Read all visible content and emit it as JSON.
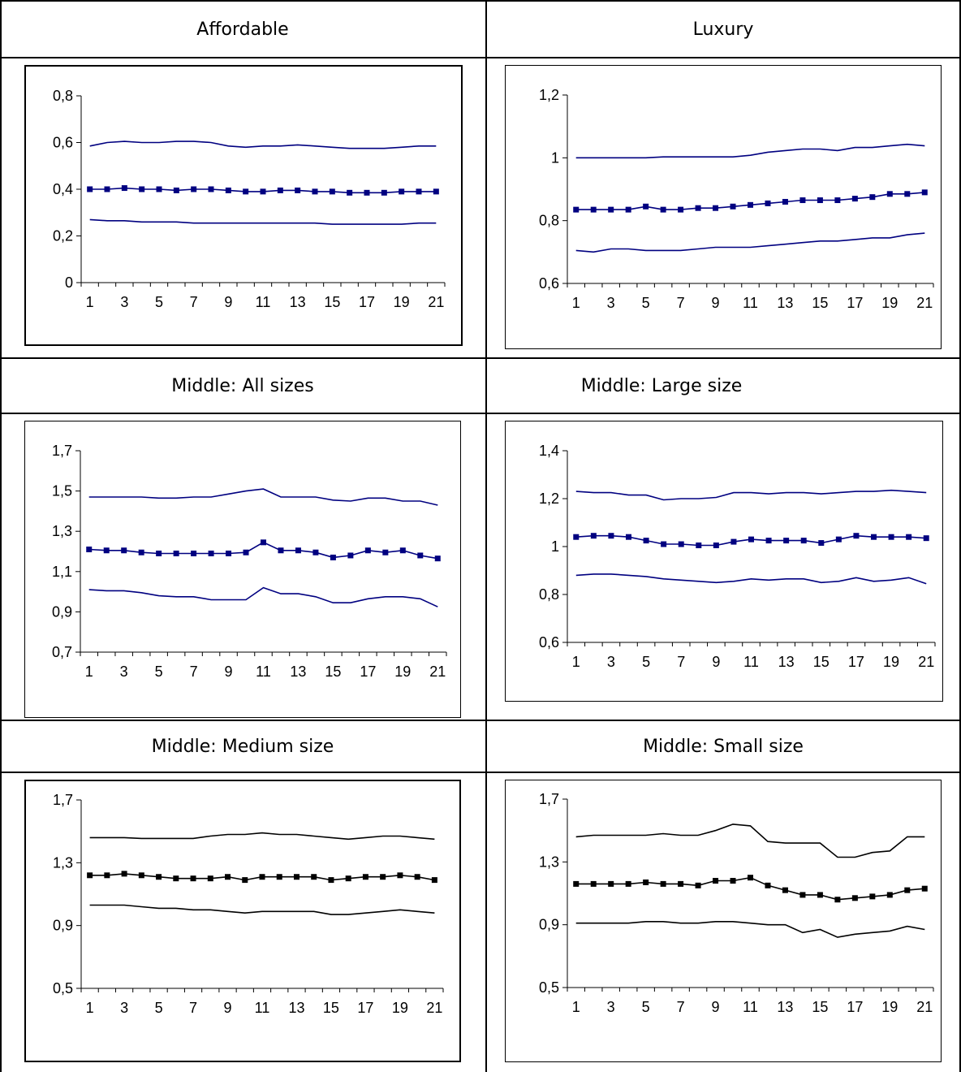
{
  "chart_data": [
    {
      "type": "line",
      "title": "Affordable",
      "x": [
        1,
        2,
        3,
        4,
        5,
        6,
        7,
        8,
        9,
        10,
        11,
        12,
        13,
        14,
        15,
        16,
        17,
        18,
        19,
        20,
        21
      ],
      "xticks": [
        "1",
        "3",
        "5",
        "7",
        "9",
        "11",
        "13",
        "15",
        "17",
        "19",
        "21"
      ],
      "ylim": [
        0,
        0.8
      ],
      "yticks": [
        "0",
        "0,2",
        "0,4",
        "0,6",
        "0,8"
      ],
      "color": "#000080",
      "series": [
        {
          "role": "upper",
          "marker": false,
          "values": [
            0.585,
            0.6,
            0.605,
            0.6,
            0.6,
            0.605,
            0.605,
            0.6,
            0.585,
            0.58,
            0.585,
            0.585,
            0.59,
            0.585,
            0.58,
            0.575,
            0.575,
            0.575,
            0.58,
            0.585,
            0.585
          ]
        },
        {
          "role": "estimate",
          "marker": true,
          "values": [
            0.4,
            0.4,
            0.405,
            0.4,
            0.4,
            0.395,
            0.4,
            0.4,
            0.395,
            0.39,
            0.39,
            0.395,
            0.395,
            0.39,
            0.39,
            0.385,
            0.385,
            0.385,
            0.39,
            0.39,
            0.39
          ]
        },
        {
          "role": "lower",
          "marker": false,
          "values": [
            0.27,
            0.265,
            0.265,
            0.26,
            0.26,
            0.26,
            0.255,
            0.255,
            0.255,
            0.255,
            0.255,
            0.255,
            0.255,
            0.255,
            0.25,
            0.25,
            0.25,
            0.25,
            0.25,
            0.255,
            0.255
          ]
        }
      ]
    },
    {
      "type": "line",
      "title": "Luxury",
      "x": [
        1,
        2,
        3,
        4,
        5,
        6,
        7,
        8,
        9,
        10,
        11,
        12,
        13,
        14,
        15,
        16,
        17,
        18,
        19,
        20,
        21
      ],
      "xticks": [
        "1",
        "3",
        "5",
        "7",
        "9",
        "11",
        "13",
        "15",
        "17",
        "19",
        "21"
      ],
      "ylim": [
        0.6,
        1.2
      ],
      "yticks": [
        "0,6",
        "0,8",
        "1",
        "1,2"
      ],
      "color": "#000080",
      "series": [
        {
          "role": "upper",
          "marker": false,
          "values": [
            1.0,
            1.0,
            1.0,
            1.0,
            1.0,
            1.003,
            1.003,
            1.003,
            1.003,
            1.003,
            1.008,
            1.018,
            1.023,
            1.028,
            1.028,
            1.023,
            1.033,
            1.033,
            1.038,
            1.043,
            1.038
          ]
        },
        {
          "role": "estimate",
          "marker": true,
          "values": [
            0.835,
            0.835,
            0.835,
            0.835,
            0.845,
            0.835,
            0.835,
            0.84,
            0.84,
            0.845,
            0.85,
            0.855,
            0.86,
            0.865,
            0.865,
            0.865,
            0.87,
            0.875,
            0.885,
            0.885,
            0.89
          ]
        },
        {
          "role": "lower",
          "marker": false,
          "values": [
            0.705,
            0.7,
            0.71,
            0.71,
            0.705,
            0.705,
            0.705,
            0.71,
            0.715,
            0.715,
            0.715,
            0.72,
            0.725,
            0.73,
            0.735,
            0.735,
            0.74,
            0.745,
            0.745,
            0.755,
            0.76
          ]
        }
      ]
    },
    {
      "type": "line",
      "title": "Middle: All sizes",
      "x": [
        1,
        2,
        3,
        4,
        5,
        6,
        7,
        8,
        9,
        10,
        11,
        12,
        13,
        14,
        15,
        16,
        17,
        18,
        19,
        20,
        21
      ],
      "xticks": [
        "1",
        "3",
        "5",
        "7",
        "9",
        "11",
        "13",
        "15",
        "17",
        "19",
        "21"
      ],
      "ylim": [
        0.7,
        1.7
      ],
      "yticks": [
        "0,7",
        "0,9",
        "1,1",
        "1,3",
        "1,5",
        "1,7"
      ],
      "color": "#000080",
      "series": [
        {
          "role": "upper",
          "marker": false,
          "values": [
            1.47,
            1.47,
            1.47,
            1.47,
            1.465,
            1.465,
            1.47,
            1.47,
            1.485,
            1.5,
            1.51,
            1.47,
            1.47,
            1.47,
            1.455,
            1.45,
            1.465,
            1.465,
            1.45,
            1.45,
            1.43
          ]
        },
        {
          "role": "estimate",
          "marker": true,
          "values": [
            1.21,
            1.205,
            1.205,
            1.195,
            1.19,
            1.19,
            1.19,
            1.19,
            1.19,
            1.195,
            1.245,
            1.205,
            1.205,
            1.195,
            1.17,
            1.18,
            1.205,
            1.195,
            1.205,
            1.18,
            1.165
          ]
        },
        {
          "role": "lower",
          "marker": false,
          "values": [
            1.01,
            1.005,
            1.005,
            0.995,
            0.98,
            0.975,
            0.975,
            0.96,
            0.96,
            0.96,
            1.02,
            0.99,
            0.99,
            0.975,
            0.945,
            0.945,
            0.965,
            0.975,
            0.975,
            0.965,
            0.925
          ]
        }
      ]
    },
    {
      "type": "line",
      "title": "Middle: Large size",
      "x": [
        1,
        2,
        3,
        4,
        5,
        6,
        7,
        8,
        9,
        10,
        11,
        12,
        13,
        14,
        15,
        16,
        17,
        18,
        19,
        20,
        21
      ],
      "xticks": [
        "1",
        "3",
        "5",
        "7",
        "9",
        "11",
        "13",
        "15",
        "17",
        "19",
        "21"
      ],
      "ylim": [
        0.6,
        1.4
      ],
      "yticks": [
        "0,6",
        "0,8",
        "1",
        "1,2",
        "1,4"
      ],
      "color": "#000080",
      "series": [
        {
          "role": "upper",
          "marker": false,
          "values": [
            1.23,
            1.225,
            1.225,
            1.215,
            1.215,
            1.195,
            1.2,
            1.2,
            1.205,
            1.225,
            1.225,
            1.22,
            1.225,
            1.225,
            1.22,
            1.225,
            1.23,
            1.23,
            1.235,
            1.23,
            1.225
          ]
        },
        {
          "role": "estimate",
          "marker": true,
          "values": [
            1.04,
            1.045,
            1.045,
            1.04,
            1.025,
            1.01,
            1.01,
            1.005,
            1.005,
            1.02,
            1.03,
            1.025,
            1.025,
            1.025,
            1.015,
            1.03,
            1.045,
            1.04,
            1.04,
            1.04,
            1.035
          ]
        },
        {
          "role": "lower",
          "marker": false,
          "values": [
            0.88,
            0.885,
            0.885,
            0.88,
            0.875,
            0.865,
            0.86,
            0.855,
            0.85,
            0.855,
            0.865,
            0.86,
            0.865,
            0.865,
            0.85,
            0.855,
            0.87,
            0.855,
            0.86,
            0.87,
            0.845
          ]
        }
      ]
    },
    {
      "type": "line",
      "title": "Middle: Medium size",
      "x": [
        1,
        2,
        3,
        4,
        5,
        6,
        7,
        8,
        9,
        10,
        11,
        12,
        13,
        14,
        15,
        16,
        17,
        18,
        19,
        20,
        21
      ],
      "xticks": [
        "1",
        "3",
        "5",
        "7",
        "9",
        "11",
        "13",
        "15",
        "17",
        "19",
        "21"
      ],
      "ylim": [
        0.5,
        1.7
      ],
      "yticks": [
        "0,5",
        "0,9",
        "1,3",
        "1,7"
      ],
      "color": "#000000",
      "series": [
        {
          "role": "upper",
          "marker": false,
          "values": [
            1.46,
            1.46,
            1.46,
            1.455,
            1.455,
            1.455,
            1.455,
            1.47,
            1.48,
            1.48,
            1.49,
            1.48,
            1.48,
            1.47,
            1.46,
            1.45,
            1.46,
            1.47,
            1.47,
            1.46,
            1.45
          ]
        },
        {
          "role": "estimate",
          "marker": true,
          "values": [
            1.22,
            1.22,
            1.23,
            1.22,
            1.21,
            1.2,
            1.2,
            1.2,
            1.21,
            1.19,
            1.21,
            1.21,
            1.21,
            1.21,
            1.19,
            1.2,
            1.21,
            1.21,
            1.22,
            1.21,
            1.19
          ]
        },
        {
          "role": "lower",
          "marker": false,
          "values": [
            1.03,
            1.03,
            1.03,
            1.02,
            1.01,
            1.01,
            1.0,
            1.0,
            0.99,
            0.98,
            0.99,
            0.99,
            0.99,
            0.99,
            0.97,
            0.97,
            0.98,
            0.99,
            1.0,
            0.99,
            0.98
          ]
        }
      ]
    },
    {
      "type": "line",
      "title": "Middle: Small size",
      "x": [
        1,
        2,
        3,
        4,
        5,
        6,
        7,
        8,
        9,
        10,
        11,
        12,
        13,
        14,
        15,
        16,
        17,
        18,
        19,
        20,
        21
      ],
      "xticks": [
        "1",
        "3",
        "5",
        "7",
        "9",
        "11",
        "13",
        "15",
        "17",
        "19",
        "21"
      ],
      "ylim": [
        0.5,
        1.7
      ],
      "yticks": [
        "0,5",
        "0,9",
        "1,3",
        "1,7"
      ],
      "color": "#000000",
      "series": [
        {
          "role": "upper",
          "marker": false,
          "values": [
            1.46,
            1.47,
            1.47,
            1.47,
            1.47,
            1.48,
            1.47,
            1.47,
            1.5,
            1.54,
            1.53,
            1.43,
            1.42,
            1.42,
            1.42,
            1.33,
            1.33,
            1.36,
            1.37,
            1.46,
            1.46
          ]
        },
        {
          "role": "estimate",
          "marker": true,
          "values": [
            1.16,
            1.16,
            1.16,
            1.16,
            1.17,
            1.16,
            1.16,
            1.15,
            1.18,
            1.18,
            1.2,
            1.15,
            1.12,
            1.09,
            1.09,
            1.06,
            1.07,
            1.08,
            1.09,
            1.12,
            1.13
          ]
        },
        {
          "role": "lower",
          "marker": false,
          "values": [
            0.91,
            0.91,
            0.91,
            0.91,
            0.92,
            0.92,
            0.91,
            0.91,
            0.92,
            0.92,
            0.91,
            0.9,
            0.9,
            0.85,
            0.87,
            0.82,
            0.84,
            0.85,
            0.86,
            0.89,
            0.87
          ]
        }
      ]
    }
  ]
}
